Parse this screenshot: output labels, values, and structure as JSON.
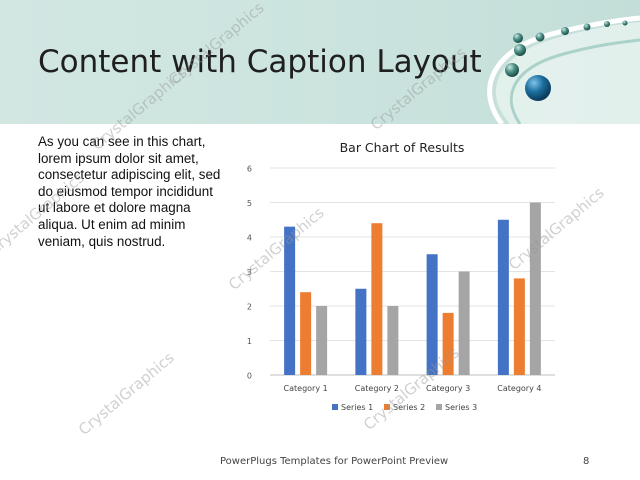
{
  "slide": {
    "title": "Content with Caption Layout",
    "caption": "As you can see in this chart, lorem ipsum dolor sit amet, consectetur adipiscing elit, sed do eiusmod tempor incididunt ut labore et dolore magna aliqua. Ut enim ad minim veniam, quis nostrud.",
    "footer_text": "PowerPlugs Templates for PowerPoint Preview",
    "page_number": "8",
    "watermark": "CrystalGraphics"
  },
  "colors": {
    "header_bg": "#cbe3de",
    "series1": "#4472c4",
    "series2": "#ed7d31",
    "series3": "#a5a5a5",
    "sphere": "#1c6fa0"
  },
  "chart_data": {
    "type": "bar",
    "title": "Bar Chart of Results",
    "categories": [
      "Category 1",
      "Category 2",
      "Category 3",
      "Category 4"
    ],
    "series": [
      {
        "name": "Series 1",
        "values": [
          4.3,
          2.5,
          3.5,
          4.5
        ]
      },
      {
        "name": "Series 2",
        "values": [
          2.4,
          4.4,
          1.8,
          2.8
        ]
      },
      {
        "name": "Series 3",
        "values": [
          2,
          2,
          3,
          5
        ]
      }
    ],
    "yticks": [
      "0",
      "1",
      "2",
      "3",
      "4",
      "5",
      "6"
    ],
    "ylim": [
      0,
      6
    ],
    "grid": true,
    "legend": "bottom"
  }
}
